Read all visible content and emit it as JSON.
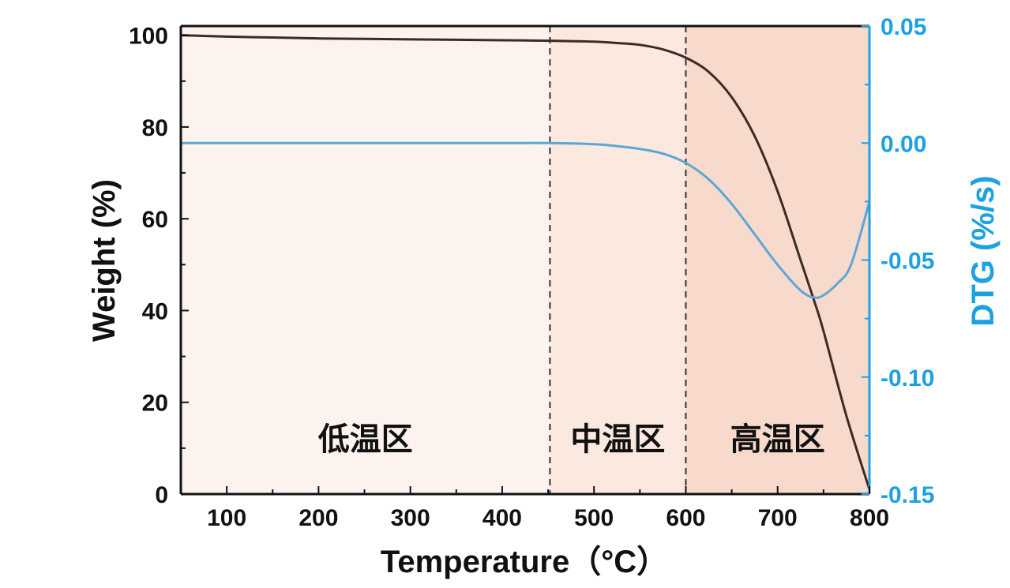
{
  "chart_data": {
    "type": "line",
    "title": "",
    "xlabel": "Temperature（°C）",
    "ylabel_left": "Weight (%)",
    "ylabel_right": "DTG (%/s)",
    "xlim": [
      50,
      800
    ],
    "ylim_left": [
      0,
      102
    ],
    "ylim_right": [
      -0.15,
      0.05
    ],
    "x_ticks": [
      100,
      200,
      300,
      400,
      500,
      600,
      700,
      800
    ],
    "x_tick_labels": [
      "100",
      "200",
      "300",
      "400",
      "500",
      "600",
      "700",
      "800"
    ],
    "y_left_ticks": [
      0,
      20,
      40,
      60,
      80,
      100
    ],
    "y_left_tick_labels": [
      "0",
      "20",
      "40",
      "60",
      "80",
      "100"
    ],
    "y_right_ticks": [
      0.05,
      0.0,
      -0.05,
      -0.1,
      -0.15
    ],
    "y_right_tick_labels": [
      "0.05",
      "0.00",
      "-0.05",
      "-0.10",
      "-0.15"
    ],
    "grid": false,
    "colors": {
      "weight": "#3d2a26",
      "dtg": "#5aa7d6",
      "right_axis": "#1da1e0",
      "left_axis": "#111111",
      "region_low": "#fdf3ee",
      "region_mid": "#fbe9df",
      "region_high": "#f7dacb"
    },
    "regions": [
      {
        "label": "低温区",
        "from": 50,
        "to": 452
      },
      {
        "label": "中温区",
        "from": 452,
        "to": 600
      },
      {
        "label": "高温区",
        "from": 600,
        "to": 800
      }
    ],
    "series": [
      {
        "name": "Weight",
        "axis": "left",
        "x": [
          50,
          100,
          150,
          200,
          250,
          300,
          350,
          400,
          450,
          500,
          525,
          550,
          575,
          600,
          625,
          650,
          675,
          700,
          725,
          740,
          750,
          775,
          800
        ],
        "values": [
          100,
          99.7,
          99.5,
          99.3,
          99.2,
          99.1,
          99.0,
          98.9,
          98.8,
          98.6,
          98.3,
          97.9,
          96.9,
          95.1,
          92.0,
          86.5,
          78.0,
          66.0,
          51.0,
          42.0,
          35.5,
          17.0,
          1.0
        ]
      },
      {
        "name": "DTG",
        "axis": "right",
        "x": [
          50,
          100,
          200,
          300,
          400,
          450,
          500,
          525,
          550,
          575,
          600,
          625,
          650,
          675,
          700,
          725,
          740,
          750,
          765,
          780,
          800
        ],
        "values": [
          0.0,
          0.0,
          0.0,
          0.0,
          0.0,
          0.0,
          -0.0005,
          -0.0013,
          -0.0025,
          -0.0045,
          -0.0085,
          -0.0155,
          -0.026,
          -0.039,
          -0.052,
          -0.063,
          -0.066,
          -0.065,
          -0.06,
          -0.052,
          -0.025
        ]
      }
    ]
  }
}
